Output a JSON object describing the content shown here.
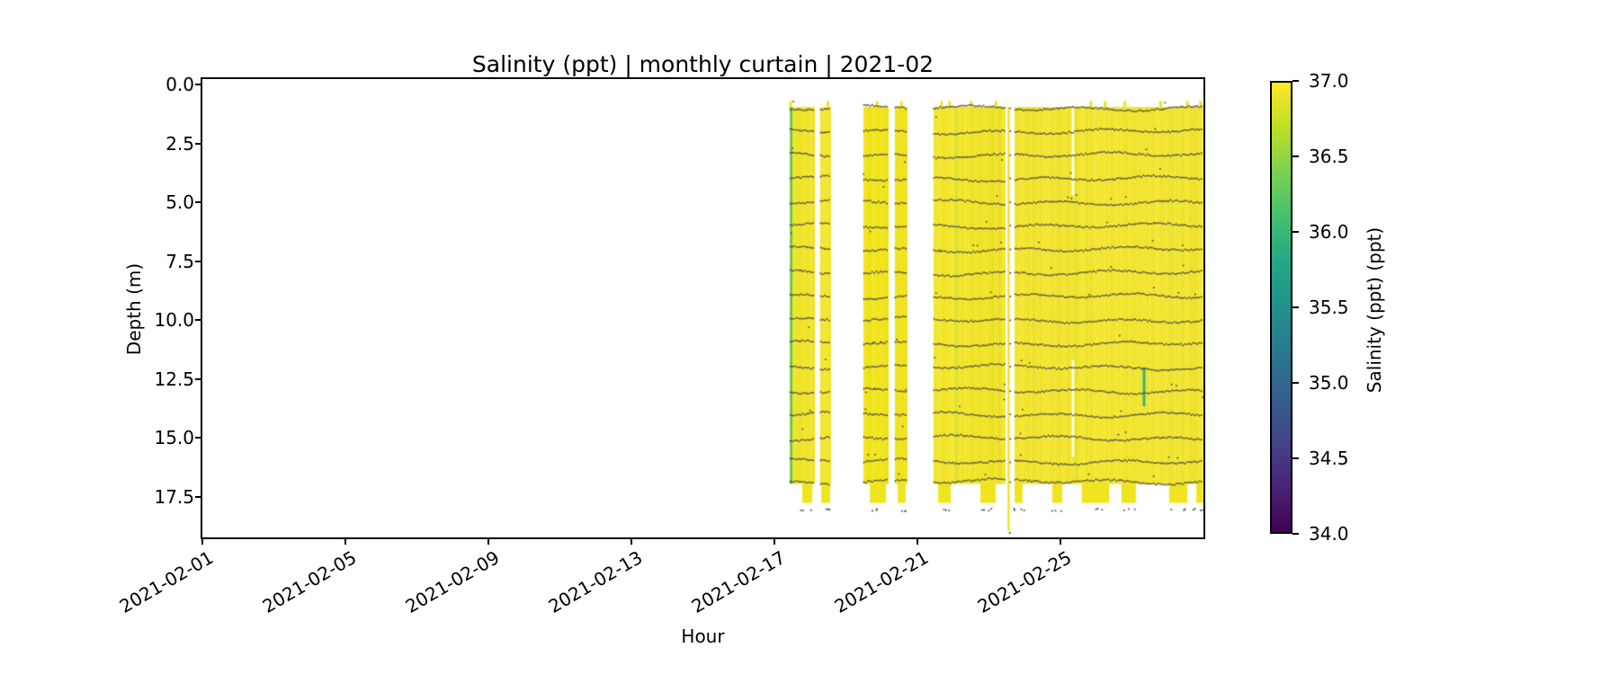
{
  "chart_data": {
    "type": "heatmap",
    "title": "Salinity (ppt) | monthly curtain | 2021-02",
    "xlabel": "Hour",
    "ylabel": "Depth (m)",
    "month": "2021-02",
    "x_axis": {
      "range_days": [
        1,
        29
      ],
      "tick_days": [
        1,
        5,
        9,
        13,
        17,
        21,
        25
      ],
      "tick_labels": [
        "2021-02-01",
        "2021-02-05",
        "2021-02-09",
        "2021-02-13",
        "2021-02-17",
        "2021-02-21",
        "2021-02-25"
      ]
    },
    "y_axis": {
      "range_m": [
        0,
        19.3
      ],
      "inverted": true,
      "tick_values": [
        0,
        2.5,
        5,
        7.5,
        10,
        12.5,
        15,
        17.5
      ],
      "tick_labels": [
        "0.0",
        "2.5",
        "5.0",
        "7.5",
        "10.0",
        "12.5",
        "15.0",
        "17.5"
      ]
    },
    "colorbar": {
      "label": "Salinity (ppt) (ppt)",
      "min": 34.0,
      "max": 37.0,
      "tick_values": [
        37,
        36.5,
        36,
        35.5,
        35,
        34.5,
        34
      ],
      "tick_labels": [
        "37.0",
        "36.5",
        "36.0",
        "35.5",
        "35.0",
        "34.5",
        "34.0"
      ],
      "colormap": "viridis",
      "gradient_stops_bottom_to_top": [
        "#440154",
        "#482475",
        "#414487",
        "#355f8d",
        "#2a788e",
        "#21918c",
        "#22a884",
        "#44bf70",
        "#7ad151",
        "#bddf26",
        "#fde725"
      ]
    },
    "dominant_salinity_ppt": 37.0,
    "curtain": {
      "top_depth_m": 0.95,
      "bottom_depth_m": 16.95,
      "sensor_row_depths_m": [
        1,
        2,
        3,
        4,
        5,
        6,
        7,
        8,
        9,
        10,
        11,
        12,
        13,
        14,
        15,
        16,
        17
      ],
      "segments_days": [
        [
          17.43,
          18.13
        ],
        [
          18.28,
          18.58
        ],
        [
          19.49,
          20.17
        ],
        [
          20.37,
          20.7
        ],
        [
          21.45,
          23.44
        ],
        [
          23.72,
          29.0
        ]
      ],
      "deep_columns_days": [
        [
          17.78,
          18.06
        ],
        [
          18.31,
          18.56
        ],
        [
          19.67,
          20.12
        ],
        [
          20.45,
          20.67
        ],
        [
          21.58,
          21.93
        ],
        [
          22.76,
          23.19
        ],
        [
          23.72,
          23.94
        ],
        [
          24.77,
          25.05
        ],
        [
          25.6,
          26.36
        ],
        [
          26.71,
          27.11
        ],
        [
          28.04,
          28.55
        ],
        [
          28.8,
          29.0
        ]
      ],
      "deep_columns_bottom_m": 17.75,
      "bottom_dot_depth_m": 18.05,
      "top_spikes_days": [
        17.45,
        18.5,
        19.87,
        20.55,
        21.68,
        21.9,
        22.5,
        23.2,
        25.85,
        26.25,
        26.8,
        27.8,
        28.55,
        28.92
      ],
      "top_spike_depth_m": 0.7,
      "deep_spike": {
        "day": 23.55,
        "from_m": 0.95,
        "to_m": 18.95
      },
      "white_gap": {
        "day": 25.35,
        "depth_ranges_m": [
          [
            0.95,
            4.7
          ],
          [
            11.7,
            15.8
          ]
        ]
      },
      "anomaly_lines": [
        {
          "day": 17.47,
          "from_m": 0.95,
          "to_m": 16.95,
          "salinity_ppt": 36.4,
          "color": "rgba(75,192,107,0.95)",
          "width": 2.4
        },
        {
          "day": 22.08,
          "from_m": 0.95,
          "to_m": 16.95,
          "salinity_ppt": 36.8,
          "color": "rgba(184,220,68,0.55)",
          "width": 2
        },
        {
          "day": 27.34,
          "from_m": 12.0,
          "to_m": 13.65,
          "salinity_ppt": 35.8,
          "color": "rgba(47,174,126,0.95)",
          "width": 3
        }
      ]
    },
    "style": {
      "base_yellow": "#f0e41e",
      "streak_green": "rgba(150,205,60,0.2)",
      "dot_color": "rgba(72,72,64,0.93)",
      "spine_color": "#000000",
      "text_color": "#000000",
      "background": "#ffffff"
    }
  }
}
